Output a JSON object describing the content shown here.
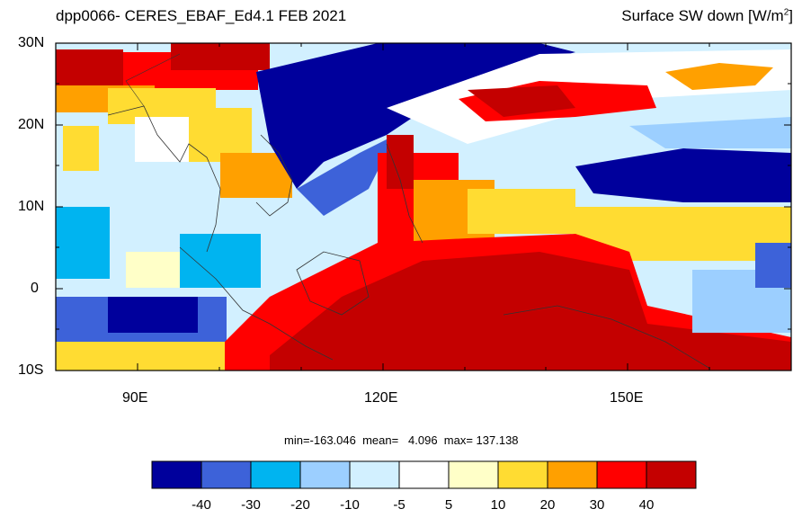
{
  "title_left": "dpp0066- CERES_EBAF_Ed4.1  FEB 2021",
  "title_right": "Surface SW down [W/m",
  "title_right_sup": "2",
  "title_right_end": "]",
  "lat_labels": [
    "30N",
    "20N",
    "10N",
    "0",
    "10S"
  ],
  "lon_labels": [
    "90E",
    "120E",
    "150E"
  ],
  "stats": {
    "text": "min=-163.046  mean=   4.096  max= 137.138"
  },
  "colorbar": {
    "colors": [
      "#00009c",
      "#3d62d9",
      "#00b4f0",
      "#9ccfff",
      "#d2f0ff",
      "#ffffff",
      "#ffffc8",
      "#ffdc32",
      "#ffa000",
      "#ff0000",
      "#c40000"
    ],
    "labels": [
      "-40",
      "-30",
      "-20",
      "-10",
      "-5",
      "5",
      "10",
      "20",
      "30",
      "40"
    ]
  }
}
